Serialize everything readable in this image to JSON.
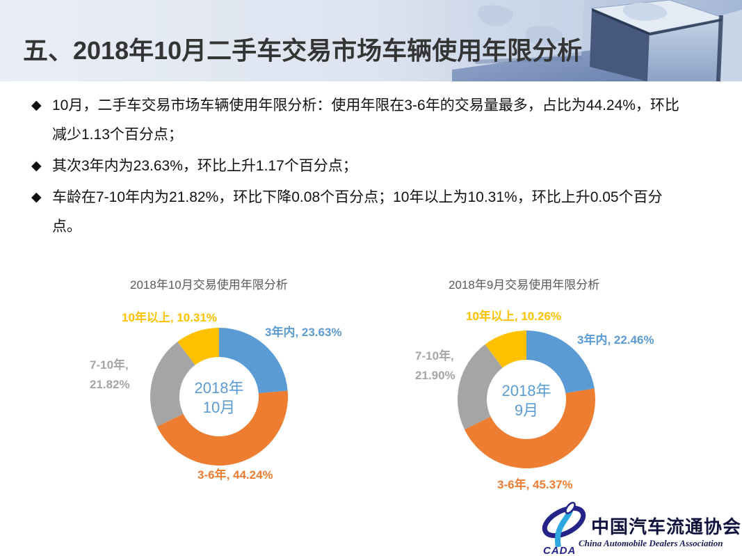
{
  "header": {
    "title": "五、2018年10月二手车交易市场车辆使用年限分析"
  },
  "bullets": {
    "marker": "◆",
    "items": [
      "10月，二手车交易市场车辆使用年限分析：使用年限在3-6年的交易量最多，占比为44.24%，环比减少1.13个百分点；",
      "其次3年内为23.63%，环比上升1.17个百分点；",
      "车龄在7-10年内为21.82%，环比下降0.08个百分点；10年以上为10.31%，环比上升0.05个百分点。"
    ]
  },
  "chart_data": [
    {
      "type": "pie",
      "subtype": "donut",
      "title": "2018年10月交易使用年限分析",
      "categories": [
        "3年内",
        "3-6年",
        "7-10年",
        "10年以上"
      ],
      "values": [
        23.63,
        44.24,
        21.82,
        10.31
      ],
      "colors": [
        "#5B9BD5",
        "#ED7D31",
        "#A5A5A5",
        "#FFC000"
      ],
      "start_angle_deg": 0,
      "direction": "clockwise",
      "center_line1": "2018年",
      "center_line2": "10月",
      "labels": {
        "blue": "3年内, 23.63%",
        "orange": "3-6年, 44.24%",
        "gray_line1": "7-10年,",
        "gray_line2": "21.82%",
        "yellow": "10年以上, 10.31%"
      }
    },
    {
      "type": "pie",
      "subtype": "donut",
      "title": "2018年9月交易使用年限分析",
      "categories": [
        "3年内",
        "3-6年",
        "7-10年",
        "10年以上"
      ],
      "values": [
        22.46,
        45.37,
        21.9,
        10.26
      ],
      "colors": [
        "#5B9BD5",
        "#ED7D31",
        "#A5A5A5",
        "#FFC000"
      ],
      "start_angle_deg": 0,
      "direction": "clockwise",
      "center_line1": "2018年",
      "center_line2": "9月",
      "labels": {
        "blue": "3年内, 22.46%",
        "orange": "3-6年, 45.37%",
        "gray_line1": "7-10年,",
        "gray_line2": "21.90%",
        "yellow": "10年以上, 10.26%"
      }
    }
  ],
  "logo": {
    "acronym": "CADA",
    "name_cn": "中国汽车流通协会",
    "name_en": "China  Automobile  Dealers  Association"
  }
}
